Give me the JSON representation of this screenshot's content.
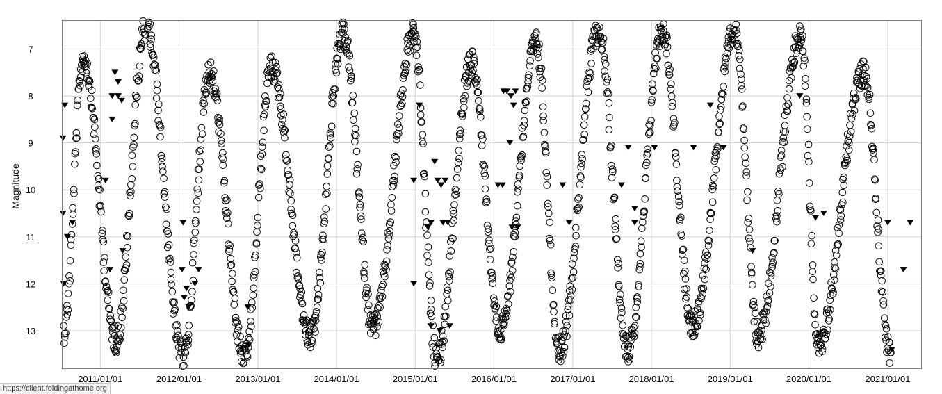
{
  "status_url": "https://client.foldingathome.org",
  "chart_data": {
    "type": "scatter",
    "title": "",
    "xlabel": "",
    "ylabel": "Magnitude",
    "x_tick_labels": [
      "2011/01/01",
      "2012/01/01",
      "2013/01/01",
      "2014/01/01",
      "2015/01/01",
      "2016/01/01",
      "2017/01/01",
      "2018/01/01",
      "2019/01/01",
      "2020/01/01",
      "2021/01/01"
    ],
    "xlim": [
      "2010/07/10",
      "2021/06/05"
    ],
    "y_tick_labels": [
      "7",
      "8",
      "9",
      "10",
      "11",
      "12",
      "13"
    ],
    "ylim": [
      13.8,
      6.4
    ],
    "y_inverted": true,
    "grid": true,
    "legend": "none",
    "colors": {
      "marks": "#000000",
      "grid": "#d0d0d0",
      "frame": "#7a7a7a"
    },
    "series": [
      {
        "marker": "open-circle",
        "points_description": "Visual observations forming a periodic light curve (Mira-type variable). Maxima and minima listed; the curve between them is densely sampled.",
        "maxima": [
          {
            "x": "2010/10/15",
            "y": 7.2
          },
          {
            "x": "2011/08/01",
            "y": 6.5
          },
          {
            "x": "2012/05/20",
            "y": 7.5
          },
          {
            "x": "2013/03/05",
            "y": 7.4
          },
          {
            "x": "2014/02/01",
            "y": 6.7
          },
          {
            "x": "2014/12/25",
            "y": 6.7
          },
          {
            "x": "2015/09/20",
            "y": 7.3
          },
          {
            "x": "2016/07/15",
            "y": 6.9
          },
          {
            "x": "2017/05/01",
            "y": 6.6
          },
          {
            "x": "2018/02/20",
            "y": 6.6
          },
          {
            "x": "2019/01/25",
            "y": 6.6
          },
          {
            "x": "2019/11/25",
            "y": 6.7
          },
          {
            "x": "2020/09/10",
            "y": 7.5
          }
        ],
        "minima": [
          {
            "x": "2010/07/15",
            "y": 13.0
          },
          {
            "x": "2011/03/15",
            "y": 13.2
          },
          {
            "x": "2012/01/20",
            "y": 13.6
          },
          {
            "x": "2012/11/01",
            "y": 13.6
          },
          {
            "x": "2013/09/01",
            "y": 13.1
          },
          {
            "x": "2014/06/20",
            "y": 12.9
          },
          {
            "x": "2015/04/10",
            "y": 13.6
          },
          {
            "x": "2016/02/01",
            "y": 13.0
          },
          {
            "x": "2016/11/01",
            "y": 13.4
          },
          {
            "x": "2017/09/15",
            "y": 13.4
          },
          {
            "x": "2018/07/10",
            "y": 12.9
          },
          {
            "x": "2019/05/10",
            "y": 13.1
          },
          {
            "x": "2020/02/15",
            "y": 13.3
          },
          {
            "x": "2021/01/15",
            "y": 13.5
          }
        ]
      },
      {
        "marker": "filled-triangle-down",
        "points_description": "Fainter-than limit observations.",
        "points": [
          {
            "x": "2010/07/12",
            "y": 8.9
          },
          {
            "x": "2010/07/12",
            "y": 10.5
          },
          {
            "x": "2010/07/15",
            "y": 12.0
          },
          {
            "x": "2010/07/20",
            "y": 8.2
          },
          {
            "x": "2010/08/01",
            "y": 11.0
          },
          {
            "x": "2010/08/25",
            "y": 10.7
          },
          {
            "x": "2011/02/15",
            "y": 11.7
          },
          {
            "x": "2011/04/15",
            "y": 11.3
          },
          {
            "x": "2011/01/25",
            "y": 9.8
          },
          {
            "x": "2011/02/25",
            "y": 8.0
          },
          {
            "x": "2011/02/25",
            "y": 8.5
          },
          {
            "x": "2011/03/10",
            "y": 7.5
          },
          {
            "x": "2011/03/25",
            "y": 7.7
          },
          {
            "x": "2011/03/25",
            "y": 8.0
          },
          {
            "x": "2011/04/10",
            "y": 8.1
          },
          {
            "x": "2012/01/20",
            "y": 10.7
          },
          {
            "x": "2012/01/15",
            "y": 11.7
          },
          {
            "x": "2012/01/25",
            "y": 12.3
          },
          {
            "x": "2012/02/05",
            "y": 12.1
          },
          {
            "x": "2012/02/15",
            "y": 12.5
          },
          {
            "x": "2012/03/15",
            "y": 12.0
          },
          {
            "x": "2012/04/01",
            "y": 11.7
          },
          {
            "x": "2012/11/15",
            "y": 12.5
          },
          {
            "x": "2012/11/20",
            "y": 13.3
          },
          {
            "x": "2014/12/25",
            "y": 9.8
          },
          {
            "x": "2014/12/25",
            "y": 12.0
          },
          {
            "x": "2015/01/20",
            "y": 8.2
          },
          {
            "x": "2015/03/01",
            "y": 10.8
          },
          {
            "x": "2015/03/15",
            "y": 10.7
          },
          {
            "x": "2015/04/01",
            "y": 9.4
          },
          {
            "x": "2015/04/15",
            "y": 9.8
          },
          {
            "x": "2015/05/01",
            "y": 9.9
          },
          {
            "x": "2015/05/10",
            "y": 10.7
          },
          {
            "x": "2015/05/20",
            "y": 9.8
          },
          {
            "x": "2015/06/01",
            "y": 10.7
          },
          {
            "x": "2015/03/15",
            "y": 12.9
          },
          {
            "x": "2015/04/25",
            "y": 13.0
          },
          {
            "x": "2015/06/10",
            "y": 12.9
          },
          {
            "x": "2016/01/20",
            "y": 9.9
          },
          {
            "x": "2016/02/10",
            "y": 9.9
          },
          {
            "x": "2016/03/15",
            "y": 9.0
          },
          {
            "x": "2016/02/15",
            "y": 7.9
          },
          {
            "x": "2016/03/01",
            "y": 7.9
          },
          {
            "x": "2016/03/20",
            "y": 8.0
          },
          {
            "x": "2016/04/10",
            "y": 7.9
          },
          {
            "x": "2016/04/01",
            "y": 8.2
          },
          {
            "x": "2016/03/25",
            "y": 10.8
          },
          {
            "x": "2016/04/20",
            "y": 10.8
          },
          {
            "x": "2016/11/15",
            "y": 9.9
          },
          {
            "x": "2016/12/15",
            "y": 10.7
          },
          {
            "x": "2017/08/15",
            "y": 9.9
          },
          {
            "x": "2017/09/15",
            "y": 9.1
          },
          {
            "x": "2017/10/15",
            "y": 10.4
          },
          {
            "x": "2017/10/15",
            "y": 10.7
          },
          {
            "x": "2018/01/15",
            "y": 9.1
          },
          {
            "x": "2018/07/15",
            "y": 9.1
          },
          {
            "x": "2018/10/01",
            "y": 8.2
          },
          {
            "x": "2018/12/01",
            "y": 9.1
          },
          {
            "x": "2019/04/15",
            "y": 11.3
          },
          {
            "x": "2019/11/20",
            "y": 8.0
          },
          {
            "x": "2020/02/01",
            "y": 10.6
          },
          {
            "x": "2020/03/10",
            "y": 10.5
          },
          {
            "x": "2021/01/01",
            "y": 10.7
          },
          {
            "x": "2021/01/20",
            "y": 13.4
          },
          {
            "x": "2021/03/15",
            "y": 11.7
          },
          {
            "x": "2021/04/15",
            "y": 10.7
          }
        ]
      }
    ]
  }
}
